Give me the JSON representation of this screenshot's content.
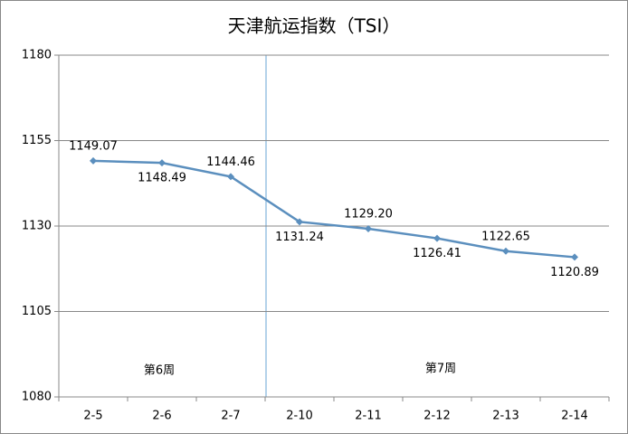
{
  "chart_data": {
    "type": "line",
    "title": "天津航运指数（TSI）",
    "categories": [
      "2-5",
      "2-6",
      "2-7",
      "2-10",
      "2-11",
      "2-12",
      "2-13",
      "2-14"
    ],
    "series": [
      {
        "color": "#5b8fbe",
        "values": [
          1149.07,
          1148.49,
          1144.46,
          1131.24,
          1129.2,
          1126.41,
          1122.65,
          1120.89
        ],
        "value_labels": [
          "1149.07",
          "1148.49",
          "1144.46",
          "1131.24",
          "1129.20",
          "1126.41",
          "1122.65",
          "1120.89"
        ]
      }
    ],
    "ylim": [
      1080,
      1180
    ],
    "yticks": [
      1080,
      1105,
      1130,
      1155,
      1180
    ],
    "grid": true,
    "annotations": [
      "第6周",
      "第7周"
    ]
  }
}
